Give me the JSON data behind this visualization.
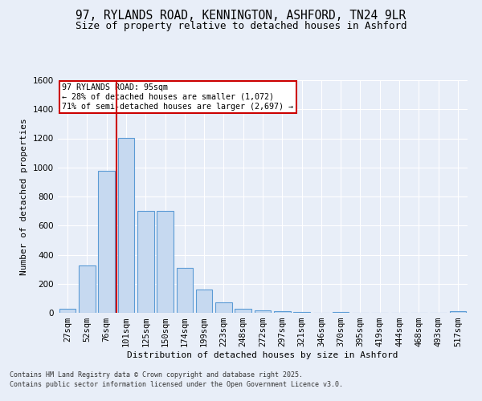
{
  "title1": "97, RYLANDS ROAD, KENNINGTON, ASHFORD, TN24 9LR",
  "title2": "Size of property relative to detached houses in Ashford",
  "xlabel": "Distribution of detached houses by size in Ashford",
  "ylabel": "Number of detached properties",
  "categories": [
    "27sqm",
    "52sqm",
    "76sqm",
    "101sqm",
    "125sqm",
    "150sqm",
    "174sqm",
    "199sqm",
    "223sqm",
    "248sqm",
    "272sqm",
    "297sqm",
    "321sqm",
    "346sqm",
    "370sqm",
    "395sqm",
    "419sqm",
    "444sqm",
    "468sqm",
    "493sqm",
    "517sqm"
  ],
  "values": [
    25,
    325,
    975,
    1205,
    700,
    700,
    310,
    160,
    70,
    25,
    15,
    10,
    8,
    2,
    5,
    0,
    0,
    0,
    0,
    0,
    10
  ],
  "bar_color": "#c6d9f0",
  "bar_edge_color": "#5b9bd5",
  "vline_color": "#cc0000",
  "annotation_text": "97 RYLANDS ROAD: 95sqm\n← 28% of detached houses are smaller (1,072)\n71% of semi-detached houses are larger (2,697) →",
  "annotation_box_color": "white",
  "annotation_edge_color": "#cc0000",
  "ylim": [
    0,
    1600
  ],
  "yticks": [
    0,
    200,
    400,
    600,
    800,
    1000,
    1200,
    1400,
    1600
  ],
  "footnote1": "Contains HM Land Registry data © Crown copyright and database right 2025.",
  "footnote2": "Contains public sector information licensed under the Open Government Licence v3.0.",
  "background_color": "#e8eef8",
  "grid_color": "#ffffff",
  "title_fontsize": 10.5,
  "subtitle_fontsize": 9,
  "axis_label_fontsize": 8,
  "tick_fontsize": 7.5,
  "footnote_fontsize": 6,
  "vline_bar_index": 2.5
}
